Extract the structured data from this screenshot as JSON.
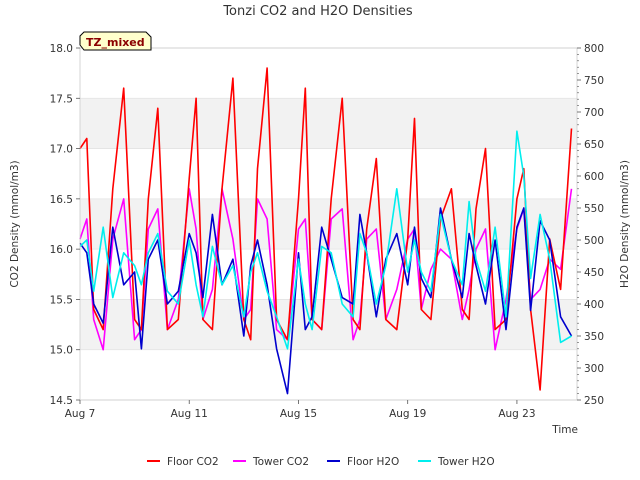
{
  "chart_data": {
    "type": "line",
    "title": "Tonzi CO2 and H2O Densities",
    "xlabel": "Time",
    "ylabel_left": "CO2 Density (mmol/m3)",
    "ylabel_right": "H2O Density (mmol/m3)",
    "badge": "TZ_mixed",
    "xlim": [
      7,
      25.2
    ],
    "ylim_left": [
      14.5,
      18.0
    ],
    "ylim_right": [
      250,
      800
    ],
    "x_ticks": [
      {
        "value": 7,
        "label": "Aug 7"
      },
      {
        "value": 11,
        "label": "Aug 11"
      },
      {
        "value": 15,
        "label": "Aug 15"
      },
      {
        "value": 19,
        "label": "Aug 19"
      },
      {
        "value": 23,
        "label": "Aug 23"
      }
    ],
    "y_ticks_left": [
      "14.5",
      "15.0",
      "15.5",
      "16.0",
      "16.5",
      "17.0",
      "17.5",
      "18.0"
    ],
    "y_ticks_right": [
      "250",
      "300",
      "350",
      "400",
      "450",
      "500",
      "550",
      "600",
      "650",
      "700",
      "750",
      "800"
    ],
    "bands_left": [
      [
        15.0,
        15.5
      ],
      [
        16.0,
        16.5
      ],
      [
        17.0,
        17.5
      ]
    ],
    "legend_position": "bottom",
    "series": [
      {
        "name": "Floor CO2",
        "axis": "left",
        "color": "#ff0000",
        "x": [
          7.0,
          7.25,
          7.5,
          7.85,
          8.2,
          8.6,
          9.0,
          9.25,
          9.5,
          9.85,
          10.2,
          10.6,
          11.0,
          11.25,
          11.5,
          11.85,
          12.2,
          12.6,
          13.0,
          13.25,
          13.5,
          13.85,
          14.2,
          14.6,
          15.0,
          15.25,
          15.5,
          15.85,
          16.2,
          16.6,
          17.0,
          17.25,
          17.5,
          17.85,
          18.2,
          18.6,
          19.0,
          19.25,
          19.5,
          19.85,
          20.2,
          20.6,
          21.0,
          21.25,
          21.5,
          21.85,
          22.2,
          22.6,
          23.0,
          23.25,
          23.5,
          23.85,
          24.2,
          24.6,
          25.0
        ],
        "y": [
          17.0,
          17.1,
          15.4,
          15.2,
          16.6,
          17.6,
          15.3,
          15.2,
          16.5,
          17.4,
          15.2,
          15.3,
          16.7,
          17.5,
          15.3,
          15.2,
          16.6,
          17.7,
          15.3,
          15.1,
          16.8,
          17.8,
          15.3,
          15.1,
          16.5,
          17.6,
          15.3,
          15.2,
          16.5,
          17.5,
          15.3,
          15.2,
          16.2,
          16.9,
          15.3,
          15.2,
          16.1,
          17.3,
          15.4,
          15.3,
          16.3,
          16.6,
          15.4,
          15.3,
          16.4,
          17.0,
          15.2,
          15.3,
          16.5,
          16.8,
          15.4,
          14.6,
          16.1,
          15.6,
          17.2
        ]
      },
      {
        "name": "Tower CO2",
        "axis": "left",
        "color": "#ff00ff",
        "x": [
          7.0,
          7.25,
          7.5,
          7.85,
          8.2,
          8.6,
          9.0,
          9.25,
          9.5,
          9.85,
          10.2,
          10.6,
          11.0,
          11.25,
          11.5,
          11.85,
          12.2,
          12.6,
          13.0,
          13.25,
          13.5,
          13.85,
          14.2,
          14.6,
          15.0,
          15.25,
          15.5,
          15.85,
          16.2,
          16.6,
          17.0,
          17.25,
          17.5,
          17.85,
          18.2,
          18.6,
          19.0,
          19.25,
          19.5,
          19.85,
          20.2,
          20.6,
          21.0,
          21.25,
          21.5,
          21.85,
          22.2,
          22.6,
          23.0,
          23.25,
          23.5,
          23.85,
          24.2,
          24.6,
          25.0
        ],
        "y": [
          16.1,
          16.3,
          15.3,
          15.0,
          16.1,
          16.5,
          15.1,
          15.2,
          16.2,
          16.4,
          15.2,
          15.5,
          16.6,
          16.2,
          15.3,
          15.6,
          16.6,
          16.1,
          15.3,
          15.4,
          16.5,
          16.3,
          15.2,
          15.1,
          16.2,
          16.3,
          15.3,
          15.2,
          16.3,
          16.4,
          15.1,
          15.3,
          16.1,
          16.2,
          15.3,
          15.6,
          16.1,
          16.2,
          15.4,
          15.8,
          16.0,
          15.9,
          15.3,
          15.6,
          16.0,
          16.2,
          15.0,
          15.5,
          16.2,
          16.4,
          15.5,
          15.6,
          15.9,
          15.8,
          16.6
        ]
      },
      {
        "name": "Floor H2O",
        "axis": "right",
        "color": "#0000cd",
        "x": [
          7.0,
          7.25,
          7.5,
          7.85,
          8.2,
          8.6,
          9.0,
          9.25,
          9.5,
          9.85,
          10.2,
          10.6,
          11.0,
          11.25,
          11.5,
          11.85,
          12.2,
          12.6,
          13.0,
          13.25,
          13.5,
          13.85,
          14.2,
          14.6,
          15.0,
          15.25,
          15.5,
          15.85,
          16.2,
          16.6,
          17.0,
          17.25,
          17.5,
          17.85,
          18.2,
          18.6,
          19.0,
          19.25,
          19.5,
          19.85,
          20.2,
          20.6,
          21.0,
          21.25,
          21.5,
          21.85,
          22.2,
          22.6,
          23.0,
          23.25,
          23.5,
          23.85,
          24.2,
          24.6,
          25.0
        ],
        "y": [
          495,
          480,
          400,
          370,
          520,
          430,
          450,
          330,
          470,
          500,
          400,
          420,
          510,
          480,
          410,
          540,
          430,
          470,
          350,
          460,
          500,
          430,
          330,
          260,
          480,
          360,
          380,
          520,
          470,
          410,
          400,
          540,
          480,
          380,
          470,
          510,
          430,
          520,
          440,
          410,
          550,
          470,
          410,
          510,
          460,
          400,
          500,
          360,
          520,
          550,
          390,
          530,
          500,
          380,
          350
        ]
      },
      {
        "name": "Tower H2O",
        "axis": "right",
        "color": "#00eeee",
        "x": [
          7.0,
          7.25,
          7.5,
          7.85,
          8.2,
          8.6,
          9.0,
          9.25,
          9.5,
          9.85,
          10.2,
          10.6,
          11.0,
          11.25,
          11.5,
          11.85,
          12.2,
          12.6,
          13.0,
          13.25,
          13.5,
          13.85,
          14.2,
          14.6,
          15.0,
          15.25,
          15.5,
          15.85,
          16.2,
          16.6,
          17.0,
          17.25,
          17.5,
          17.85,
          18.2,
          18.6,
          19.0,
          19.25,
          19.5,
          19.85,
          20.2,
          20.6,
          21.0,
          21.25,
          21.5,
          21.85,
          22.2,
          22.6,
          23.0,
          23.25,
          23.5,
          23.85,
          24.2,
          24.6,
          25.0
        ],
        "y": [
          490,
          500,
          420,
          520,
          410,
          480,
          460,
          430,
          480,
          510,
          420,
          400,
          500,
          430,
          380,
          490,
          430,
          460,
          380,
          450,
          480,
          420,
          380,
          330,
          470,
          400,
          360,
          490,
          480,
          400,
          380,
          510,
          480,
          400,
          460,
          580,
          450,
          500,
          450,
          420,
          540,
          470,
          430,
          560,
          470,
          420,
          520,
          380,
          670,
          600,
          440,
          540,
          470,
          340,
          350
        ]
      }
    ]
  }
}
